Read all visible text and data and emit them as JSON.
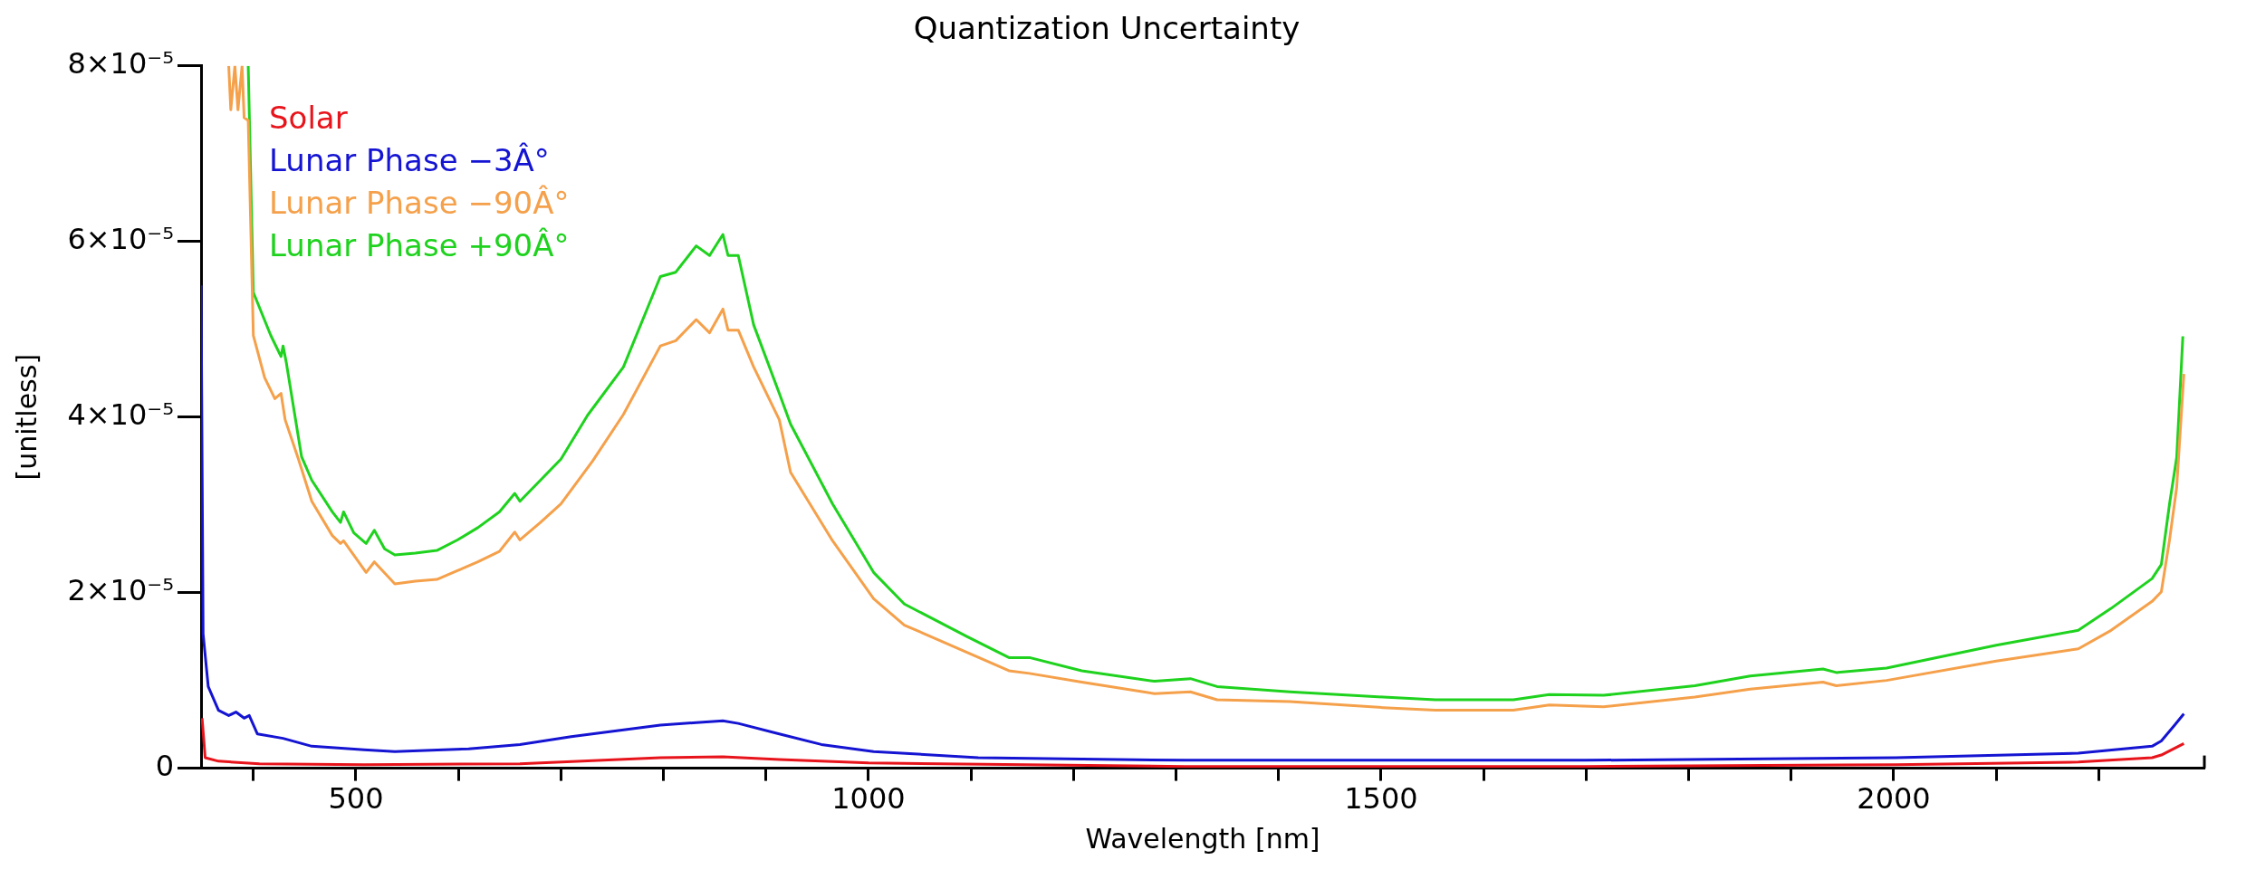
{
  "chart_data": {
    "type": "line",
    "title": "Quantization Uncertainty",
    "xlabel": "Wavelength [nm]",
    "ylabel": "[unitless]",
    "legend": "top left",
    "grid": false,
    "xlim": [
      349,
      2303
    ],
    "ylim": [
      0,
      8e-05
    ],
    "xticks": [
      {
        "value": 400,
        "label": null
      },
      500,
      {
        "value": 600,
        "label": null
      },
      {
        "value": 700,
        "label": null
      },
      {
        "value": 800,
        "label": null
      },
      {
        "value": 900,
        "label": null
      },
      1000,
      {
        "value": 1100,
        "label": null
      },
      {
        "value": 1200,
        "label": null
      },
      {
        "value": 1300,
        "label": null
      },
      {
        "value": 1400,
        "label": null
      },
      1500,
      {
        "value": 1600,
        "label": null
      },
      {
        "value": 1700,
        "label": null
      },
      {
        "value": 1800,
        "label": null
      },
      {
        "value": 1900,
        "label": null
      },
      2000,
      {
        "value": 2100,
        "label": null
      },
      {
        "value": 2200,
        "label": null
      }
    ],
    "yticks": [
      {
        "value": 0,
        "label": "0"
      },
      {
        "value": 2e-05,
        "label": "2×10⁻⁵"
      },
      {
        "value": 4e-05,
        "label": "4×10⁻⁵"
      },
      {
        "value": 6e-05,
        "label": "6×10⁻⁵"
      },
      {
        "value": 8e-05,
        "label": "8×10⁻⁵"
      }
    ],
    "series": [
      {
        "name": "Solar",
        "color": "#e8141c",
        "x": [
          350,
          353,
          366,
          406,
          508,
          660,
          797,
          858,
          913,
          1000,
          1309,
          1699,
          2002,
          2180,
          2252,
          2261,
          2283
        ],
        "values": [
          5.7e-06,
          1.2e-06,
          8e-07,
          5e-07,
          4e-07,
          5e-07,
          1.2e-06,
          1.3e-06,
          1e-06,
          6e-07,
          2e-07,
          2e-07,
          4e-07,
          7e-07,
          1.2e-06,
          1.5e-06,
          2.8e-06
        ]
      },
      {
        "name": "Lunar Phase −3Â°",
        "color": "#1414d2",
        "x": [
          349,
          351,
          356,
          366,
          376,
          383,
          391,
          396,
          404,
          429,
          457,
          508,
          538,
          610,
          660,
          710,
          797,
          832,
          858,
          873,
          913,
          954,
          1005,
          1107,
          1309,
          1699,
          2002,
          2180,
          2252,
          2261,
          2274,
          2283
        ],
        "values": [
          5.5e-05,
          1.53e-05,
          9.3e-06,
          6.6e-06,
          6e-06,
          6.4e-06,
          5.7e-06,
          6e-06,
          3.9e-06,
          3.4e-06,
          2.5e-06,
          2.1e-06,
          1.9e-06,
          2.2e-06,
          2.7e-06,
          3.6e-06,
          4.9e-06,
          5.2e-06,
          5.4e-06,
          5.1e-06,
          3.9e-06,
          2.7e-06,
          1.9e-06,
          1.2e-06,
          9e-07,
          9e-07,
          1.2e-06,
          1.7e-06,
          2.5e-06,
          3.1e-06,
          4.9e-06,
          6.2e-06
        ]
      },
      {
        "name": "Lunar Phase −90Â°",
        "color": "#f5a04a",
        "x": [
          376,
          378,
          382,
          385,
          389,
          391,
          395,
          400,
          411,
          421,
          427,
          431,
          444,
          457,
          477,
          485,
          488,
          510,
          518,
          538,
          558,
          579,
          599,
          619,
          640,
          655,
          660,
          680,
          700,
          731,
          761,
          797,
          812,
          832,
          845,
          858,
          863,
          873,
          888,
          913,
          924,
          965,
          1005,
          1035,
          1096,
          1137,
          1157,
          1208,
          1279,
          1314,
          1340,
          1411,
          1502,
          1553,
          1629,
          1664,
          1717,
          1806,
          1860,
          1931,
          1944,
          1993,
          2100,
          2180,
          2212,
          2252,
          2261,
          2269,
          2276,
          2283
        ],
        "values": [
          8e-05,
          7.5e-05,
          8e-05,
          7.5e-05,
          8e-05,
          7.41e-05,
          7.38e-05,
          4.93e-05,
          4.45e-05,
          4.21e-05,
          4.27e-05,
          3.97e-05,
          3.52e-05,
          3.04e-05,
          2.65e-05,
          2.56e-05,
          2.59e-05,
          2.23e-05,
          2.35e-05,
          2.1e-05,
          2.13e-05,
          2.15e-05,
          2.25e-05,
          2.35e-05,
          2.47e-05,
          2.69e-05,
          2.6e-05,
          2.8e-05,
          3.01e-05,
          3.5e-05,
          4.03e-05,
          4.81e-05,
          4.87e-05,
          5.11e-05,
          4.96e-05,
          5.23e-05,
          4.99e-05,
          4.99e-05,
          4.57e-05,
          3.97e-05,
          3.37e-05,
          2.59e-05,
          1.93e-05,
          1.63e-05,
          1.32e-05,
          1.11e-05,
          1.08e-05,
          9.8e-06,
          8.5e-06,
          8.7e-06,
          7.8e-06,
          7.6e-06,
          6.9e-06,
          6.6e-06,
          6.6e-06,
          7.2e-06,
          7e-06,
          8.1e-06,
          9e-06,
          9.8e-06,
          9.4e-06,
          1e-05,
          1.22e-05,
          1.36e-05,
          1.57e-05,
          1.9e-05,
          2.01e-05,
          2.6e-05,
          3.2e-05,
          4.49e-05
        ]
      },
      {
        "name": "Lunar Phase +90Â°",
        "color": "#1ed21e",
        "x": [
          395,
          400,
          417,
          427,
          429,
          432,
          447,
          457,
          477,
          485,
          488,
          498,
          510,
          518,
          528,
          538,
          558,
          579,
          599,
          619,
          640,
          655,
          660,
          680,
          700,
          726,
          761,
          797,
          812,
          832,
          845,
          858,
          863,
          873,
          888,
          913,
          924,
          965,
          1005,
          1035,
          1096,
          1137,
          1157,
          1208,
          1279,
          1314,
          1340,
          1411,
          1502,
          1553,
          1629,
          1664,
          1717,
          1806,
          1860,
          1931,
          1944,
          1993,
          2100,
          2180,
          2212,
          2252,
          2261,
          2269,
          2276,
          2282
        ],
        "values": [
          8e-05,
          5.42e-05,
          4.93e-05,
          4.69e-05,
          4.81e-05,
          4.63e-05,
          3.55e-05,
          3.28e-05,
          2.92e-05,
          2.8e-05,
          2.92e-05,
          2.68e-05,
          2.56e-05,
          2.71e-05,
          2.5e-05,
          2.43e-05,
          2.45e-05,
          2.48e-05,
          2.6e-05,
          2.74e-05,
          2.92e-05,
          3.13e-05,
          3.04e-05,
          3.28e-05,
          3.52e-05,
          4.02e-05,
          4.57e-05,
          5.6e-05,
          5.65e-05,
          5.95e-05,
          5.84e-05,
          6.08e-05,
          5.84e-05,
          5.84e-05,
          5.05e-05,
          4.27e-05,
          3.92e-05,
          3.01e-05,
          2.23e-05,
          1.87e-05,
          1.5e-05,
          1.26e-05,
          1.26e-05,
          1.11e-05,
          9.9e-06,
          1.02e-05,
          9.3e-06,
          8.7e-06,
          8.1e-06,
          7.8e-06,
          7.8e-06,
          8.4e-06,
          8.3e-06,
          9.4e-06,
          1.05e-05,
          1.13e-05,
          1.09e-05,
          1.14e-05,
          1.4e-05,
          1.57e-05,
          1.82e-05,
          2.16e-05,
          2.32e-05,
          3.01e-05,
          3.54e-05,
          4.92e-05
        ]
      }
    ]
  }
}
